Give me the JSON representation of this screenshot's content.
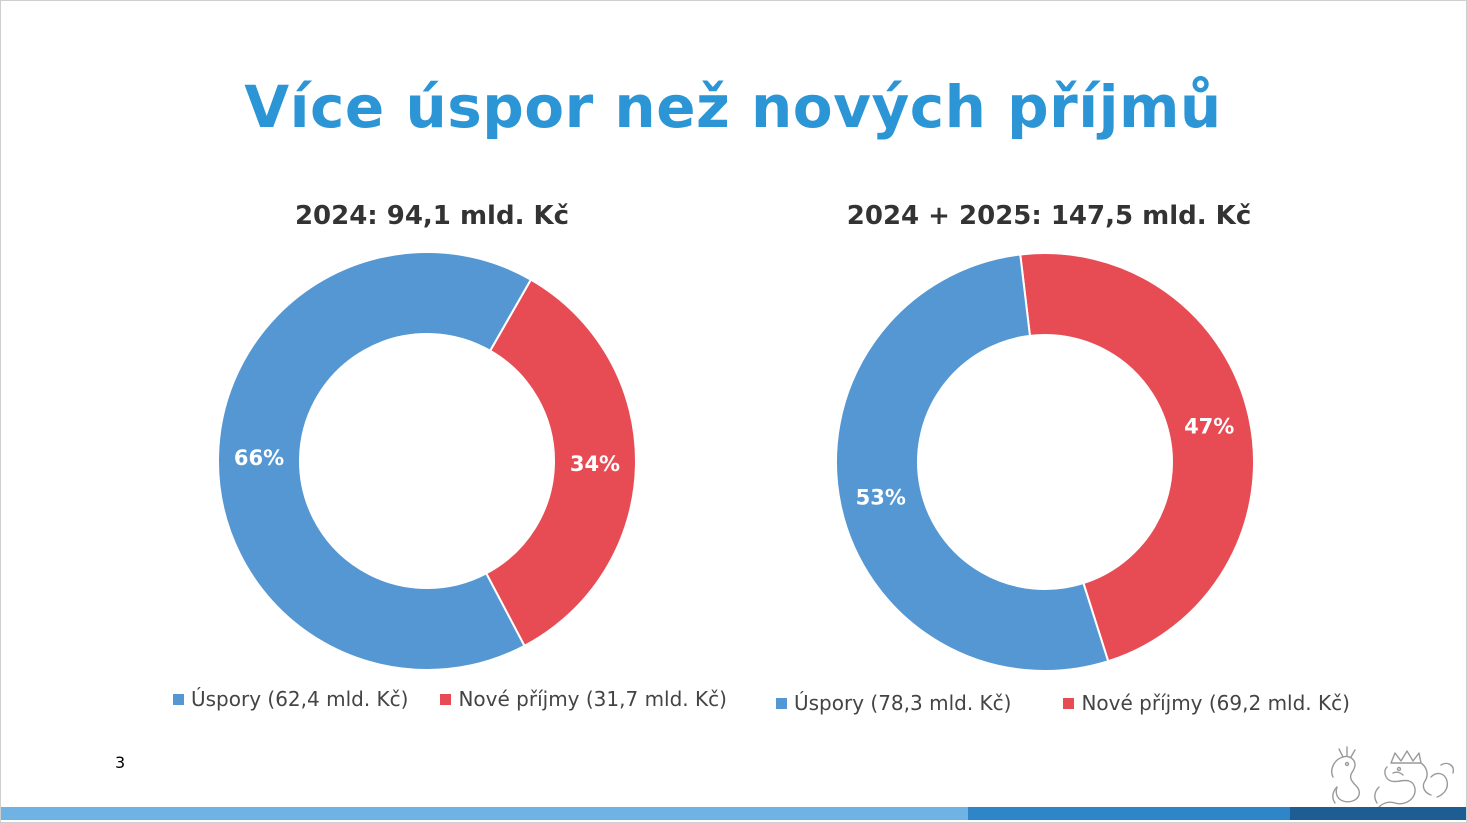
{
  "slide": {
    "title": "Více úspor než nových příjmů",
    "page_number": "3",
    "footer_colors": [
      "#6FB2E4",
      "#2E86C8",
      "#1E5D94"
    ],
    "logo_icon": "czech-lion-icon"
  },
  "colors": {
    "uspory": "#5497D3",
    "nove_prijmy": "#E74C55",
    "title": "#2B95D6"
  },
  "chart_data": [
    {
      "type": "pie",
      "donut": true,
      "title": "2024: 94,1 mld. Kč",
      "categories": [
        "Úspory",
        "Nové příjmy"
      ],
      "values": [
        66,
        34
      ],
      "value_labels": [
        "66%",
        "34%"
      ],
      "amounts": [
        62.4,
        31.7
      ],
      "legend": [
        "Úspory (62,4 mld. Kč)",
        "Nové příjmy (31,7 mld. Kč)"
      ],
      "colors": [
        "#5497D3",
        "#E74C55"
      ],
      "legend_position": "bottom"
    },
    {
      "type": "pie",
      "donut": true,
      "title": "2024 + 2025: 147,5 mld. Kč",
      "categories": [
        "Úspory",
        "Nové příjmy"
      ],
      "values": [
        53,
        47
      ],
      "value_labels": [
        "53%",
        "47%"
      ],
      "amounts": [
        78.3,
        69.2
      ],
      "legend": [
        "Úspory (78,3 mld. Kč)",
        "Nové příjmy (69,2 mld. Kč)"
      ],
      "colors": [
        "#5497D3",
        "#E74C55"
      ],
      "legend_position": "bottom"
    }
  ]
}
